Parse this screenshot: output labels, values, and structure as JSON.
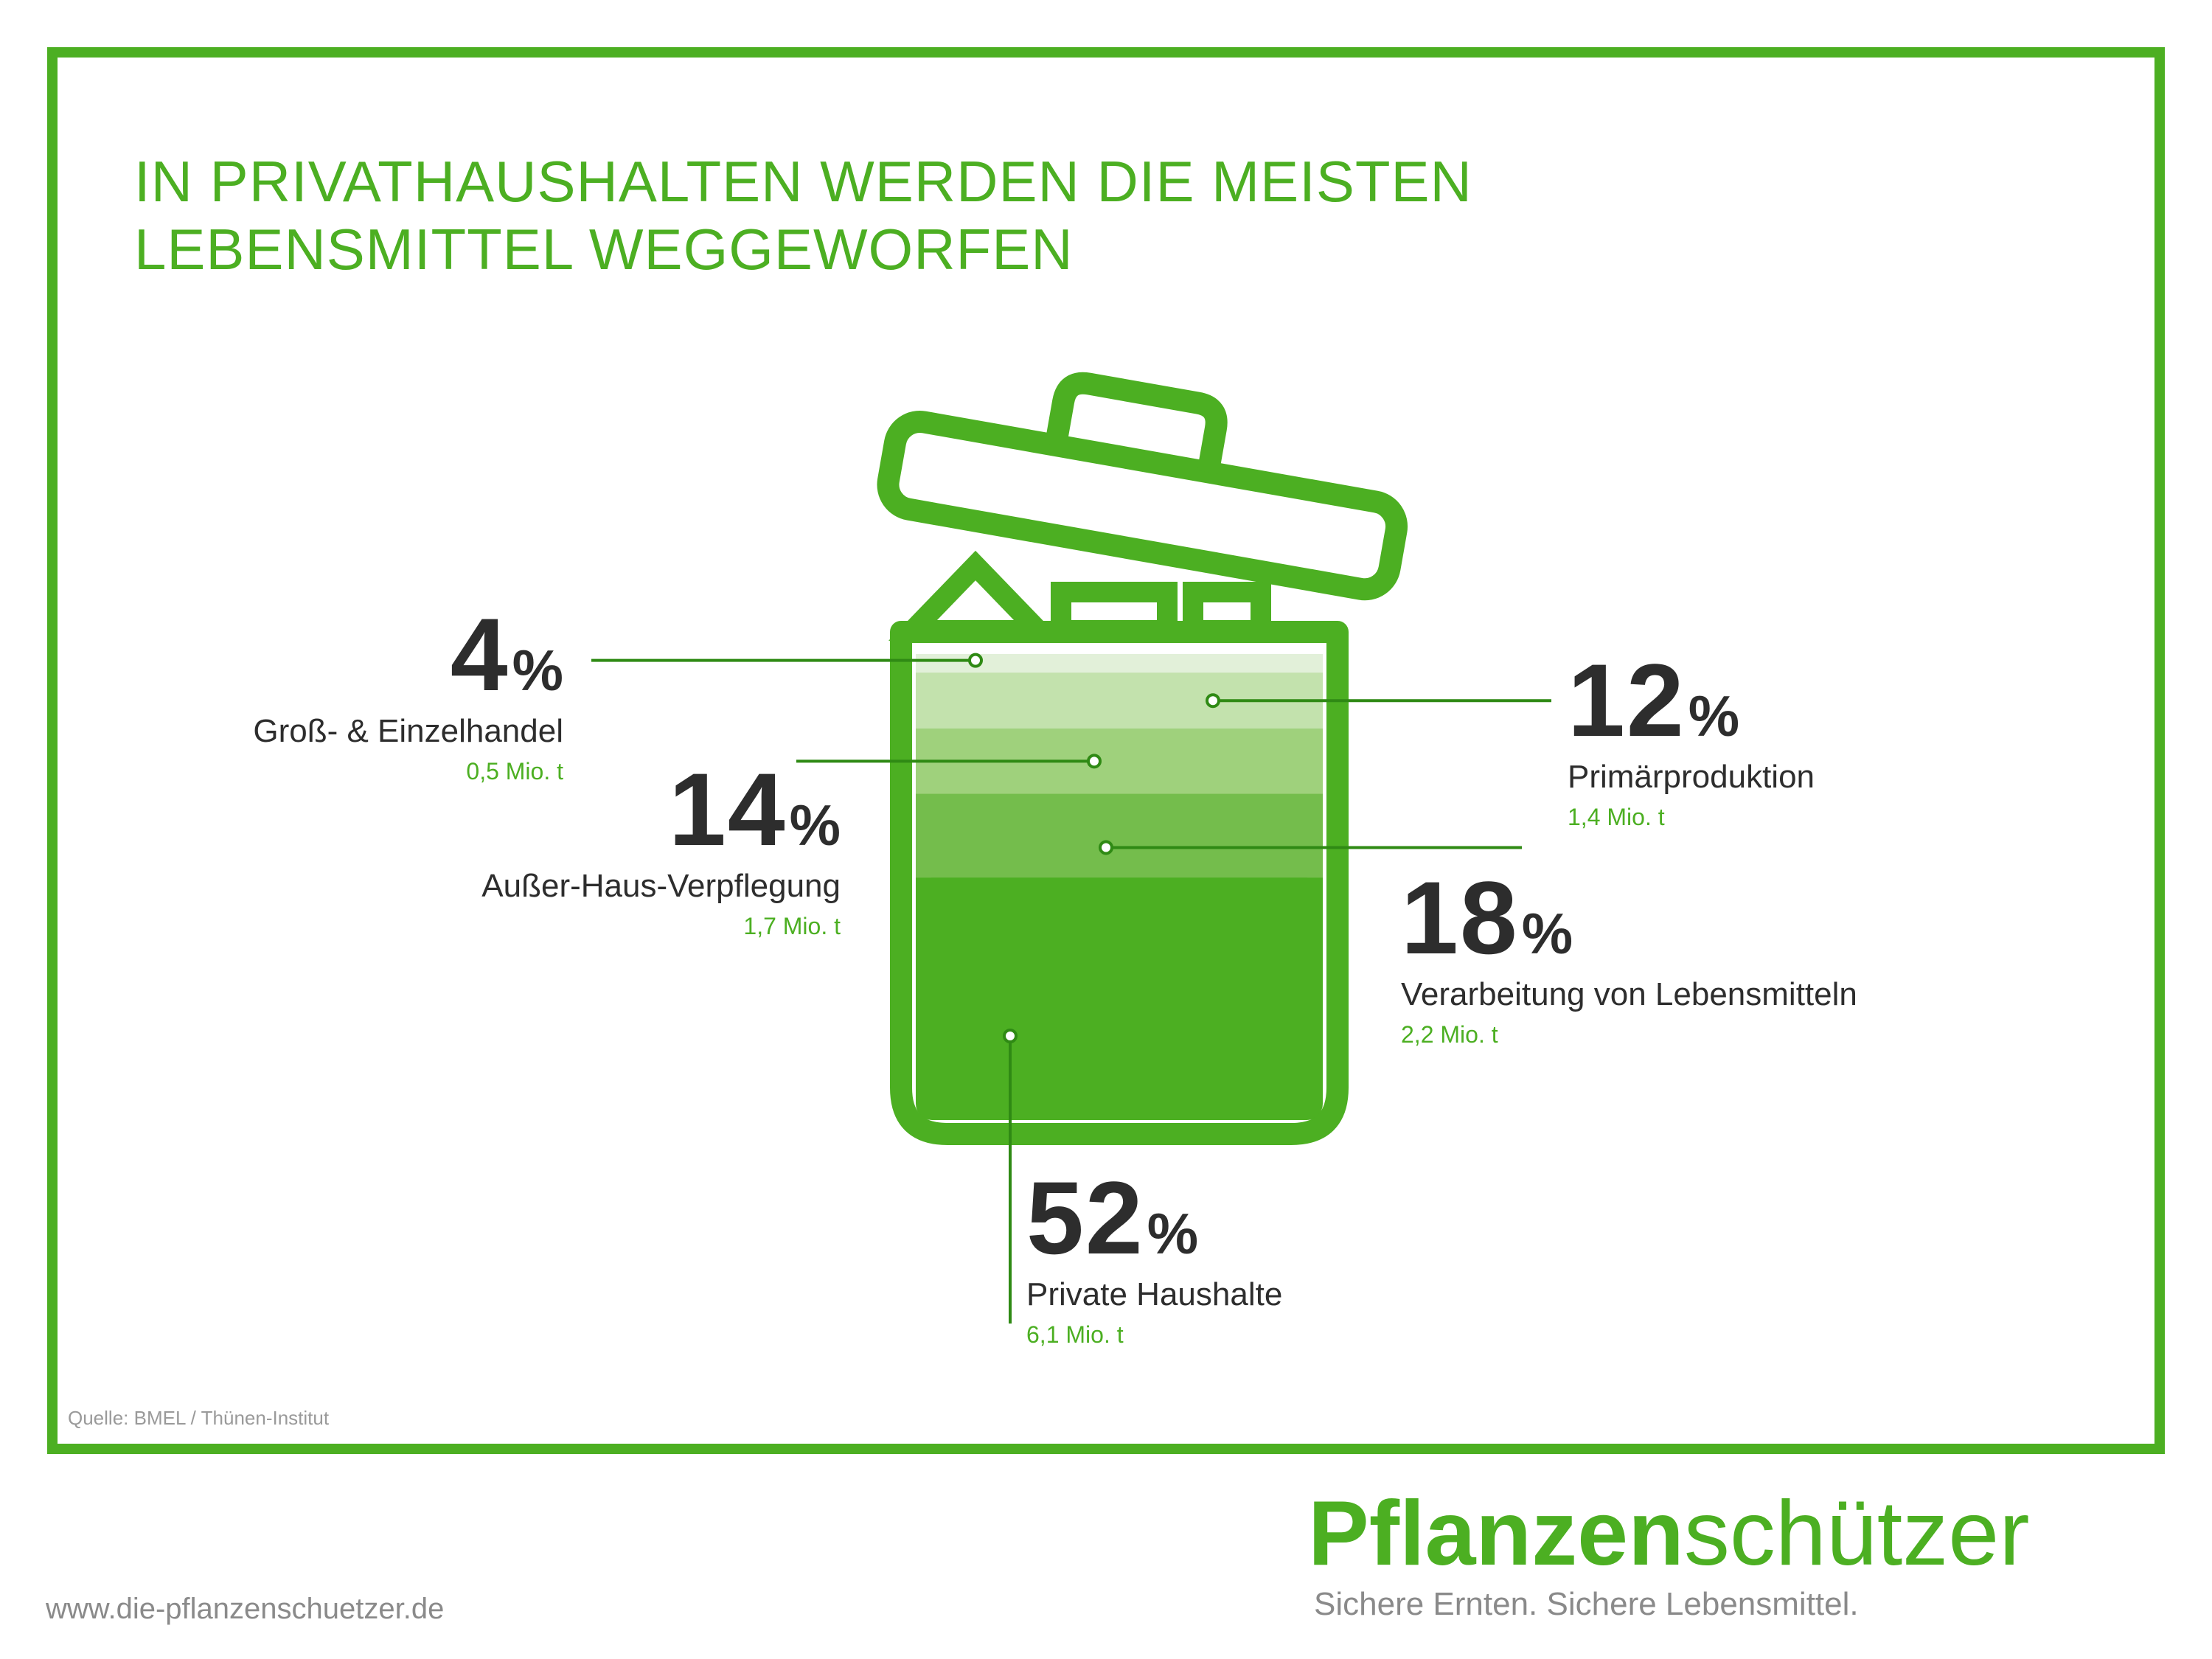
{
  "title": {
    "line1": "IN PRIVATHAUSHALTEN WERDEN DIE MEISTEN",
    "line2": "LEBENSMITTEL WEGGEWORFEN"
  },
  "percent_symbol": "%",
  "chart_data": {
    "type": "bar",
    "title": "IN PRIVATHAUSHALTEN WERDEN DIE MEISTEN LEBENSMITTEL WEGGEWORFEN",
    "unit": "%",
    "categories": [
      "Groß- & Einzelhandel",
      "Primärproduktion",
      "Außer-Haus-Verpflegung",
      "Verarbeitung von Lebensmitteln",
      "Private Haushalte"
    ],
    "values": [
      4,
      12,
      14,
      18,
      52
    ],
    "amounts": [
      "0,5 Mio. t",
      "1,4 Mio. t",
      "1,7 Mio. t",
      "2,2 Mio. t",
      "6,1 Mio. t"
    ],
    "labels": [
      "4",
      "12",
      "14",
      "18",
      "52"
    ],
    "colors": [
      "#e2f0d9",
      "#c3e2ad",
      "#9fd17c",
      "#74bd4c",
      "#4caf22"
    ]
  },
  "source": "Quelle: BMEL / Thünen-Institut",
  "footer": {
    "url": "www.die-pflanzenschuetzer.de",
    "brand_bold": "Pflanzen",
    "brand_light": "schützer",
    "tagline": "Sichere Ernten. Sichere Lebensmittel."
  },
  "colors": {
    "accent": "#4caf22",
    "text": "#2d2d2d",
    "muted": "#8a8a8a"
  }
}
